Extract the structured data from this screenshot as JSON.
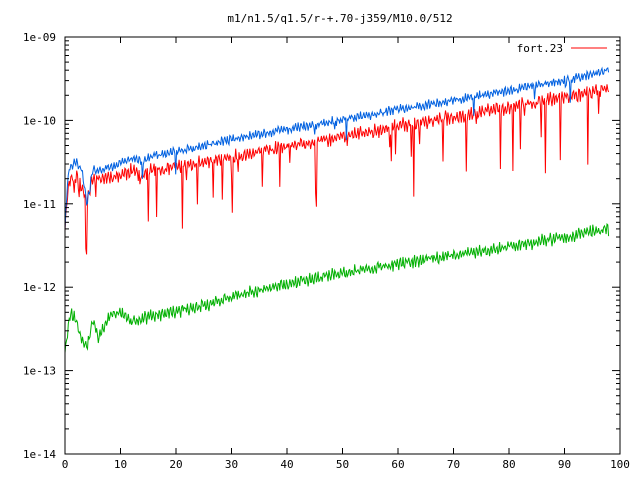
{
  "chart_data": {
    "type": "line",
    "title": "m1/n1.5/q1.5/r-+.70-j359/M10.0/512",
    "xlabel": "",
    "ylabel": "",
    "xlim": [
      0,
      100
    ],
    "ylim": [
      1e-14,
      1e-09
    ],
    "yscale": "log",
    "grid": false,
    "legend_position": "top-right",
    "x_ticks": [
      0,
      10,
      20,
      30,
      40,
      50,
      60,
      70,
      80,
      90,
      100
    ],
    "x_tick_labels": [
      "0",
      "10",
      "20",
      "30",
      "40",
      "50",
      "60",
      "70",
      "80",
      "90",
      "100"
    ],
    "y_ticks": [
      1e-14,
      1e-13,
      1e-12,
      1e-11,
      1e-10,
      1e-09
    ],
    "y_tick_labels": [
      "1e-14",
      "1e-13",
      "1e-12",
      "1e-11",
      "1e-10",
      "1e-09"
    ],
    "series": [
      {
        "name": "fort.23",
        "color": "#ff0000",
        "x": [
          0,
          0.5,
          1,
          2,
          3,
          4,
          5,
          6,
          8,
          10,
          12,
          14,
          16,
          18,
          20,
          22,
          24,
          26,
          28,
          30,
          33,
          36,
          40,
          44,
          48,
          52,
          56,
          60,
          64,
          68,
          72,
          76,
          80,
          84,
          88,
          92,
          96,
          98
        ],
        "y": [
          5e-12,
          1.5e-11,
          2e-11,
          2.2e-11,
          1.5e-11,
          1.2e-11,
          2.1e-11,
          2e-11,
          2.1e-11,
          2.2e-11,
          2.5e-11,
          2.2e-11,
          2.6e-11,
          2.5e-11,
          2.8e-11,
          2.9e-11,
          3e-11,
          3.3e-11,
          3.4e-11,
          3.6e-11,
          3.9e-11,
          4.3e-11,
          4.8e-11,
          5.3e-11,
          6e-11,
          6.8e-11,
          7.5e-11,
          8.5e-11,
          9.5e-11,
          1.05e-10,
          1.15e-10,
          1.3e-10,
          1.45e-10,
          1.6e-10,
          1.8e-10,
          2e-10,
          2.3e-10,
          2.5e-10
        ]
      },
      {
        "name": "",
        "color": "#0060e0",
        "x": [
          0,
          0.5,
          1,
          2,
          3,
          4,
          5,
          6,
          8,
          10,
          12,
          14,
          16,
          18,
          20,
          22,
          24,
          26,
          28,
          30,
          33,
          36,
          40,
          44,
          48,
          52,
          56,
          60,
          64,
          68,
          72,
          76,
          80,
          84,
          88,
          92,
          96,
          98
        ],
        "y": [
          5e-12,
          2e-11,
          2.8e-11,
          3.2e-11,
          2.5e-11,
          1e-11,
          2.6e-11,
          2.4e-11,
          2.8e-11,
          3e-11,
          3.5e-11,
          3.3e-11,
          3.8e-11,
          3.9e-11,
          4.2e-11,
          4.5e-11,
          4.8e-11,
          5.2e-11,
          5.5e-11,
          5.9e-11,
          6.4e-11,
          7e-11,
          7.8e-11,
          8.7e-11,
          9.7e-11,
          1.08e-10,
          1.2e-10,
          1.35e-10,
          1.5e-10,
          1.65e-10,
          1.85e-10,
          2.05e-10,
          2.3e-10,
          2.55e-10,
          2.85e-10,
          3.2e-10,
          3.7e-10,
          4e-10
        ]
      },
      {
        "name": "",
        "color": "#00b000",
        "x": [
          0,
          0.5,
          1,
          2,
          3,
          4,
          5,
          6,
          8,
          10,
          12,
          14,
          16,
          18,
          20,
          22,
          24,
          26,
          28,
          30,
          33,
          36,
          40,
          44,
          48,
          52,
          56,
          60,
          64,
          68,
          72,
          76,
          80,
          84,
          88,
          92,
          96,
          98
        ],
        "y": [
          1.7e-13,
          3e-13,
          5e-13,
          4e-13,
          2.5e-13,
          2e-13,
          4e-13,
          2.5e-13,
          4.5e-13,
          5e-13,
          3.8e-13,
          4.2e-13,
          4.5e-13,
          4.8e-13,
          5e-13,
          5.5e-13,
          5.9e-13,
          6.3e-13,
          7e-13,
          7.5e-13,
          8.5e-13,
          9.5e-13,
          1.1e-12,
          1.25e-12,
          1.4e-12,
          1.55e-12,
          1.7e-12,
          1.9e-12,
          2.1e-12,
          2.3e-12,
          2.55e-12,
          2.8e-12,
          3.1e-12,
          3.4e-12,
          3.8e-12,
          4.2e-12,
          4.8e-12,
          5e-12
        ]
      }
    ]
  }
}
